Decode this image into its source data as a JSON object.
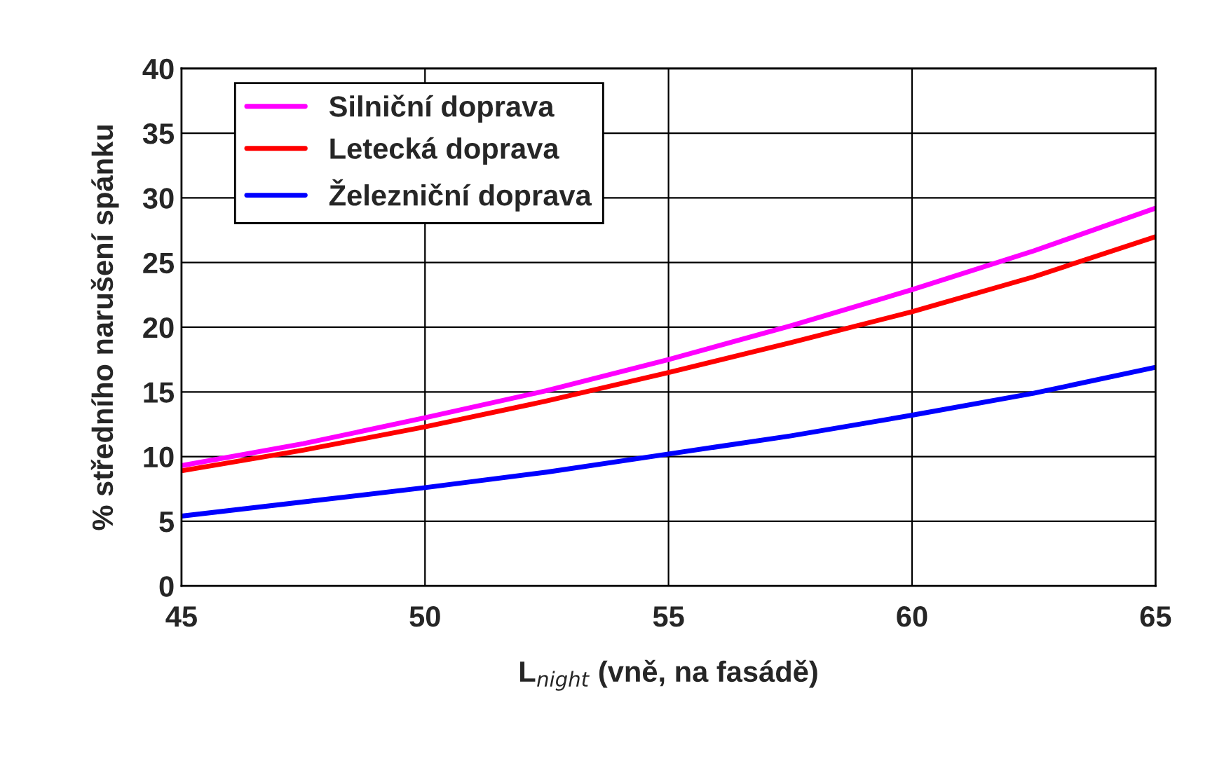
{
  "chart_data": {
    "type": "line",
    "xlabel": "L$_{night}$ (vně, na fasádě)",
    "ylabel": "% středního narušení spánku",
    "x": [
      45,
      47.5,
      50,
      52.5,
      55,
      57.5,
      60,
      62.5,
      65
    ],
    "series": [
      {
        "name": "Silniční doprava",
        "color": "#ff00ff",
        "values": [
          9.3,
          11.0,
          13.0,
          15.1,
          17.5,
          20.1,
          22.9,
          25.9,
          29.2
        ]
      },
      {
        "name": "Letecká doprava",
        "color": "#ff0000",
        "values": [
          8.9,
          10.5,
          12.3,
          14.3,
          16.5,
          18.8,
          21.2,
          23.9,
          27.0
        ]
      },
      {
        "name": "Železniční doprava",
        "color": "#0000ff",
        "values": [
          5.4,
          6.5,
          7.6,
          8.8,
          10.2,
          11.6,
          13.2,
          14.9,
          16.9
        ]
      }
    ],
    "xlim": [
      45,
      65
    ],
    "xticks": [
      45,
      50,
      55,
      60,
      65
    ],
    "ylim": [
      0,
      40
    ],
    "yticks": [
      0,
      5,
      10,
      15,
      20,
      25,
      30,
      35,
      40
    ],
    "grid": true,
    "legend": "top left",
    "marker": "none",
    "line_style": "solid"
  }
}
